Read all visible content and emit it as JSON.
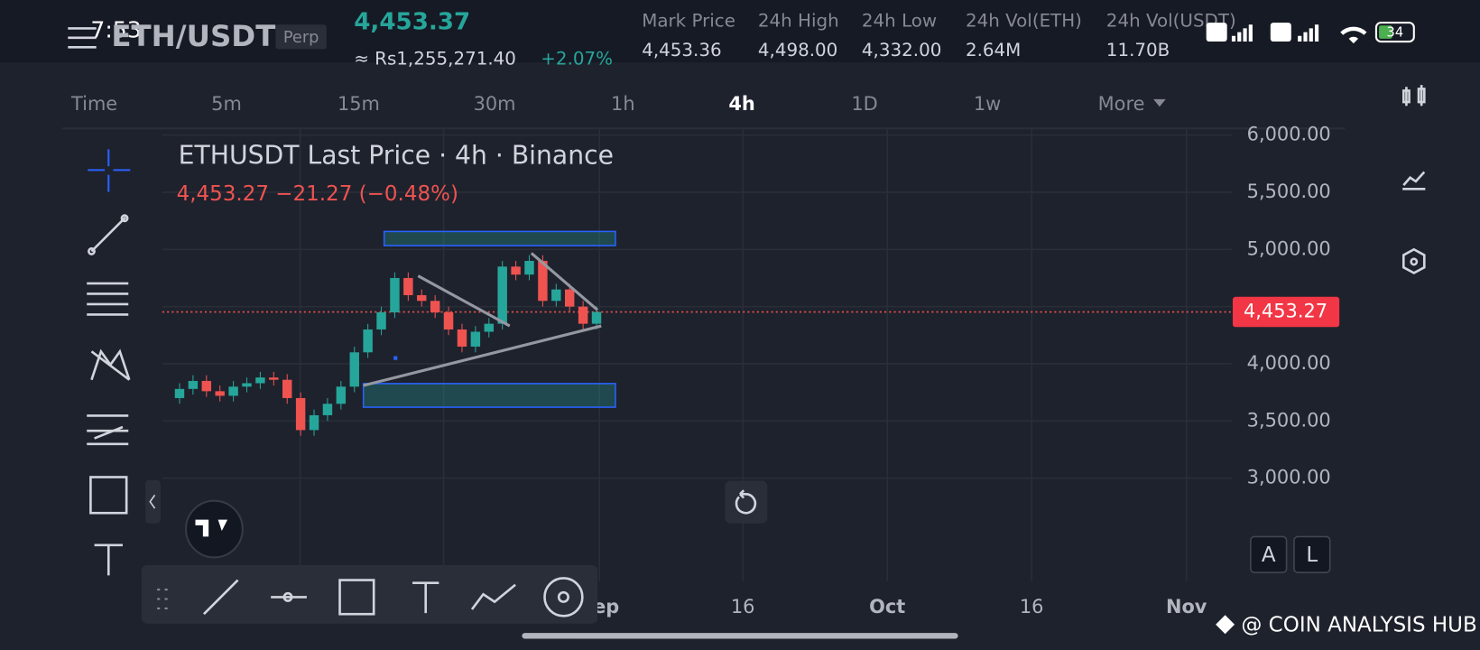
{
  "status": {
    "time": "7:53",
    "battery": "34"
  },
  "header": {
    "pair": "ETH/USDT",
    "badge": "Perp",
    "price": "4,453.37",
    "local_price": "≈ Rs1,255,271.40",
    "change": "+2.07%",
    "stats": [
      {
        "label": "Mark Price",
        "value": "4,453.36"
      },
      {
        "label": "24h High",
        "value": "4,498.00"
      },
      {
        "label": "24h Low",
        "value": "4,332.00"
      },
      {
        "label": "24h Vol(ETH)",
        "value": "2.64M"
      },
      {
        "label": "24h Vol(USDT)",
        "value": "11.70B"
      }
    ]
  },
  "timeframes": [
    "Time",
    "5m",
    "15m",
    "30m",
    "1h",
    "4h",
    "1D",
    "1w",
    "More"
  ],
  "active_timeframe": "4h",
  "chart_data": {
    "type": "candlestick",
    "title": "ETHUSDT Last Price · 4h · Binance",
    "subtitle": "4,453.27  −21.27 (−0.48%)",
    "values": [
      3700,
      3780,
      3850,
      3760,
      3720,
      3800,
      3830,
      3880,
      3860,
      3700,
      3420,
      3550,
      3650,
      3800,
      4100,
      4300,
      4450,
      4750,
      4600,
      4550,
      4450,
      4300,
      4150,
      4280,
      4350,
      4850,
      4780,
      4900,
      4550,
      4650,
      4500,
      4350,
      4453
    ],
    "up_color": "#26a69a",
    "down_color": "#ef5350",
    "ylim": [
      2100,
      6066
    ],
    "yticks": [
      {
        "value": 3000,
        "label": "3,000.00"
      },
      {
        "value": 3500,
        "label": "3,500.00"
      },
      {
        "value": 4000,
        "label": "4,000.00"
      },
      {
        "value": 4500,
        "label": "4,500.00"
      },
      {
        "value": 5000,
        "label": "5,000.00"
      },
      {
        "value": 5500,
        "label": "5,500.00"
      },
      {
        "value": 6000,
        "label": "6,000.00"
      }
    ],
    "x_labels": [
      "Sep",
      "16",
      "Oct",
      "16",
      "Nov"
    ],
    "last_price": {
      "value": 4453.27,
      "label": "4,453.27"
    },
    "grid": true
  },
  "scale_buttons": [
    "A",
    "L"
  ],
  "watermark": "@ COIN ANALYSIS HUB"
}
